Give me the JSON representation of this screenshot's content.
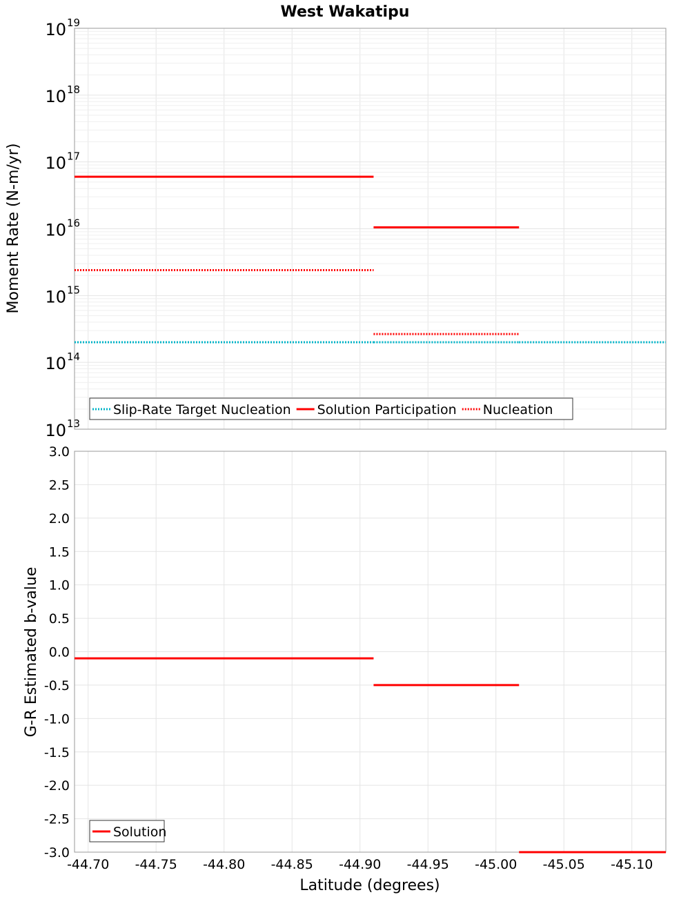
{
  "chart_data": [
    {
      "type": "line",
      "title": "West Wakatipu",
      "ylabel": "Moment Rate (N-m/yr)",
      "yscale": "log",
      "ylim_exponent": [
        13,
        19
      ],
      "y_tick_base": "10",
      "y_tick_exponents": [
        "13",
        "14",
        "15",
        "16",
        "17",
        "18",
        "19"
      ],
      "xlim": [
        -44.69,
        -45.125
      ],
      "grid": true,
      "legend": {
        "placement": "bottom-left",
        "entries": [
          {
            "label": "Slip-Rate Target Nucleation",
            "color": "#00b4c8",
            "style": "dotted"
          },
          {
            "label": "Solution Participation",
            "color": "#ff0000",
            "style": "solid"
          },
          {
            "label": "Nucleation",
            "color": "#ff0000",
            "style": "dotted"
          }
        ]
      },
      "series": [
        {
          "name": "Slip-Rate Target Nucleation",
          "color": "#00b4c8",
          "style": "dotted",
          "segments": [
            {
              "x": [
                -44.69,
                -44.91
              ],
              "y": 200000000000000.0
            },
            {
              "x": [
                -44.91,
                -45.017
              ],
              "y": 200000000000000.0
            },
            {
              "x": [
                -45.017,
                -45.125
              ],
              "y": 200000000000000.0
            }
          ]
        },
        {
          "name": "Solution Participation",
          "color": "#ff0000",
          "style": "solid",
          "segments": [
            {
              "x": [
                -44.69,
                -44.91
              ],
              "y": 6e+16
            },
            {
              "x": [
                -44.91,
                -45.017
              ],
              "y": 1.05e+16
            }
          ]
        },
        {
          "name": "Nucleation",
          "color": "#ff0000",
          "style": "dotted",
          "segments": [
            {
              "x": [
                -44.69,
                -44.91
              ],
              "y": 2400000000000000.0
            },
            {
              "x": [
                -44.91,
                -45.017
              ],
              "y": 265000000000000.0
            }
          ]
        }
      ]
    },
    {
      "type": "line",
      "ylabel": "G-R Estimated b-value",
      "xlabel": "Latitude (degrees)",
      "ylim": [
        -3.0,
        3.0
      ],
      "xlim": [
        -44.69,
        -45.125
      ],
      "grid": true,
      "y_ticks": [
        3.0,
        2.5,
        2.0,
        1.5,
        1.0,
        0.5,
        0.0,
        -0.5,
        -1.0,
        -1.5,
        -2.0,
        -2.5,
        -3.0
      ],
      "y_tick_labels": [
        "3.0",
        "2.5",
        "2.0",
        "1.5",
        "1.0",
        "0.5",
        "0.0",
        "-0.5",
        "-1.0",
        "-1.5",
        "-2.0",
        "-2.5",
        "-3.0"
      ],
      "x_ticks": [
        -44.7,
        -44.75,
        -44.8,
        -44.85,
        -44.9,
        -44.95,
        -45.0,
        -45.05,
        -45.1
      ],
      "x_tick_labels": [
        "-44.70",
        "-44.75",
        "-44.80",
        "-44.85",
        "-44.90",
        "-44.95",
        "-45.00",
        "-45.05",
        "-45.10"
      ],
      "legend": {
        "placement": "bottom-left",
        "entries": [
          {
            "label": "Solution",
            "color": "#ff0000",
            "style": "solid"
          }
        ]
      },
      "series": [
        {
          "name": "Solution",
          "color": "#ff0000",
          "style": "solid",
          "segments": [
            {
              "x": [
                -44.69,
                -44.91
              ],
              "y": -0.1
            },
            {
              "x": [
                -44.91,
                -45.017
              ],
              "y": -0.5
            },
            {
              "x": [
                -45.017,
                -45.125
              ],
              "y": -3.0
            }
          ]
        }
      ]
    }
  ]
}
